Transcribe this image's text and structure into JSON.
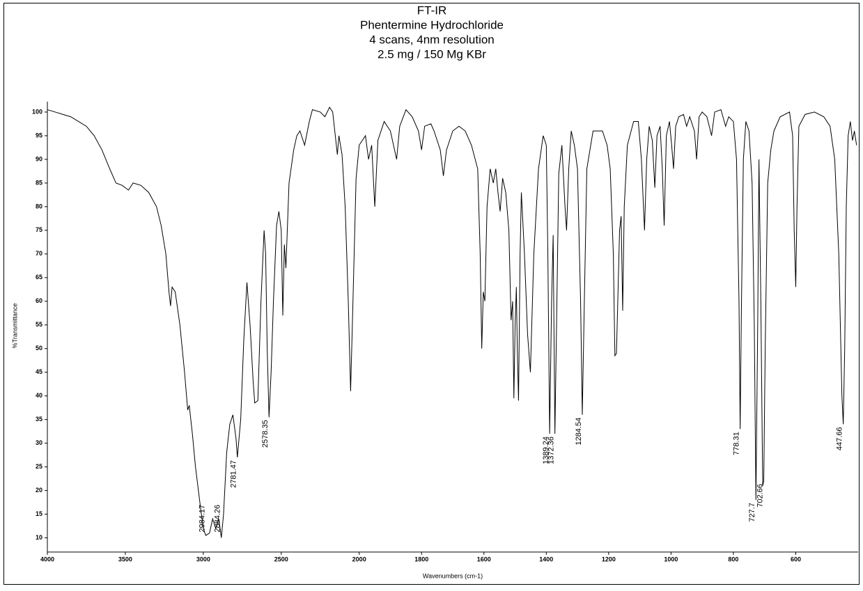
{
  "chart_data": {
    "type": "line",
    "title": "FT-IR",
    "subtitle": [
      "Phentermine Hydrochloride",
      "4 scans, 4nm resolution",
      "2.5 mg / 150 Mg KBr"
    ],
    "x_label": "Wavenumbers (cm-1)",
    "y_label": "%Transmittance",
    "xlim": [
      4000,
      400
    ],
    "x_expansion": {
      "at": 2000,
      "factor": 2
    },
    "xticks": [
      4000,
      3500,
      3000,
      2500,
      2000,
      1800,
      1600,
      1400,
      1200,
      1000,
      800,
      600
    ],
    "ylim": [
      7,
      102.2
    ],
    "yticks": [
      10,
      15,
      20,
      25,
      30,
      35,
      40,
      45,
      50,
      55,
      60,
      65,
      70,
      75,
      80,
      85,
      90,
      95,
      100
    ],
    "grid": false,
    "color": "#000000",
    "x": [
      4000,
      3950,
      3900,
      3850,
      3800,
      3750,
      3700,
      3650,
      3600,
      3560,
      3520,
      3480,
      3450,
      3400,
      3350,
      3300,
      3270,
      3240,
      3220,
      3210,
      3200,
      3180,
      3150,
      3120,
      3100,
      3090,
      3070,
      3050,
      3020,
      3000,
      2984.17,
      2960,
      2940,
      2920,
      2900,
      2884.26,
      2870,
      2850,
      2830,
      2810,
      2790,
      2781.47,
      2760,
      2740,
      2720,
      2700,
      2680,
      2670,
      2650,
      2630,
      2610,
      2600,
      2590,
      2578.35,
      2565,
      2550,
      2530,
      2515,
      2500,
      2490,
      2480,
      2470,
      2450,
      2420,
      2400,
      2380,
      2350,
      2320,
      2300,
      2250,
      2220,
      2190,
      2170,
      2150,
      2140,
      2130,
      2110,
      2090,
      2070,
      2055,
      2040,
      2020,
      2000,
      1980,
      1970,
      1960,
      1950,
      1940,
      1920,
      1900,
      1880,
      1870,
      1850,
      1830,
      1810,
      1800,
      1790,
      1770,
      1760,
      1740,
      1730,
      1720,
      1700,
      1680,
      1660,
      1640,
      1620,
      1612,
      1607,
      1602,
      1597,
      1590,
      1580,
      1570,
      1562,
      1555,
      1548,
      1540,
      1530,
      1520,
      1513,
      1508,
      1504,
      1500,
      1496,
      1493,
      1489,
      1484,
      1480,
      1470,
      1460,
      1451,
      1440,
      1425,
      1410,
      1400,
      1395,
      1389.24,
      1383,
      1378,
      1372.36,
      1366,
      1360,
      1350,
      1340,
      1335,
      1328,
      1320,
      1310,
      1300,
      1290,
      1284.54,
      1278,
      1270,
      1250,
      1220,
      1205,
      1195,
      1185,
      1180,
      1175,
      1165,
      1160,
      1155,
      1150,
      1140,
      1120,
      1105,
      1095,
      1085,
      1078,
      1070,
      1060,
      1052,
      1045,
      1035,
      1028,
      1022,
      1015,
      1005,
      998,
      992,
      985,
      975,
      960,
      950,
      940,
      925,
      918,
      910,
      900,
      885,
      870,
      860,
      840,
      825,
      815,
      800,
      790,
      782,
      778.31,
      774,
      768,
      760,
      750,
      740,
      733,
      727.7,
      722,
      718,
      712,
      706,
      702.66,
      698,
      690,
      680,
      670,
      650,
      620,
      610,
      605,
      600,
      596,
      590,
      570,
      540,
      510,
      490,
      475,
      462,
      452,
      447.66,
      443,
      438,
      432,
      425,
      418,
      412,
      405
    ],
    "values": [
      100.5,
      100,
      99.5,
      99,
      98,
      97,
      95,
      92,
      88,
      85,
      84.5,
      83.5,
      85,
      84.5,
      83,
      80,
      76,
      70,
      62,
      59,
      63,
      62,
      55,
      45,
      37,
      38,
      32,
      25,
      17,
      12,
      10.5,
      11,
      14,
      12,
      14,
      10,
      15,
      28,
      34,
      36,
      31,
      27,
      35,
      52,
      64,
      55,
      43,
      38.5,
      39,
      60,
      75,
      70,
      50,
      35.5,
      45,
      60,
      76,
      79,
      75,
      57,
      72,
      67,
      85,
      92,
      95,
      96,
      93,
      98,
      100.5,
      100,
      99,
      101,
      100,
      94,
      91,
      95,
      91,
      80,
      60,
      41,
      60,
      86,
      93,
      95,
      90,
      93,
      80,
      94,
      98,
      96,
      90,
      97,
      100.5,
      99,
      96,
      92,
      97,
      97.5,
      96,
      92,
      86.5,
      92,
      96,
      97,
      96,
      93,
      88,
      70,
      50,
      62,
      60,
      80,
      88,
      85,
      88,
      83,
      79,
      86,
      83,
      75,
      56,
      60,
      39.5,
      55,
      63,
      50,
      39,
      70,
      83,
      70,
      53,
      45,
      70,
      88,
      95,
      93,
      70,
      32,
      60,
      74,
      32,
      60,
      87,
      93,
      80,
      75,
      88,
      96,
      93,
      88,
      60,
      36,
      60,
      88,
      96,
      96,
      93,
      88,
      70,
      48.5,
      49,
      75,
      78,
      58,
      80,
      93,
      98,
      98,
      90,
      75,
      90,
      97,
      94,
      84,
      95,
      97,
      88,
      76,
      95,
      98,
      93,
      88,
      97,
      99,
      99.5,
      97,
      99,
      96,
      90,
      99,
      100,
      99,
      95,
      100,
      100.5,
      97,
      99,
      98,
      90,
      60,
      33,
      60,
      90,
      98,
      96,
      85,
      55,
      18,
      55,
      90,
      60,
      21,
      22,
      50,
      85,
      92,
      96,
      99,
      100,
      95,
      75,
      63,
      80,
      97,
      99.5,
      100,
      99,
      97,
      90,
      70,
      40,
      34,
      50,
      80,
      95,
      98,
      94,
      96,
      93
    ],
    "peak_labels": [
      2984.17,
      2884.26,
      2781.47,
      2578.35,
      1389.24,
      1372.36,
      1284.54,
      778.31,
      727.7,
      702.66,
      447.66
    ]
  }
}
